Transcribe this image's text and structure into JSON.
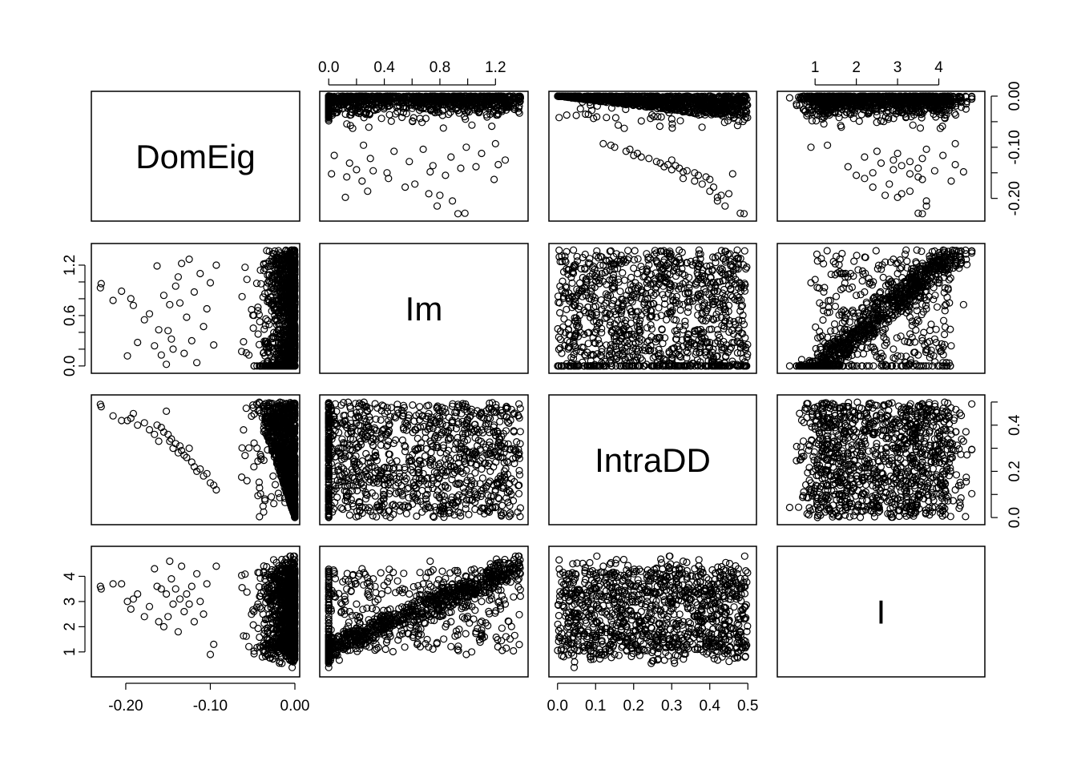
{
  "chart_data": {
    "type": "scatter",
    "plot_kind": "scatterplot matrix (pairs plot)",
    "title": "",
    "marker": "open circle",
    "colors": {
      "points": "#000000",
      "frame": "#000000",
      "background": "#ffffff"
    },
    "variables": [
      {
        "name": "DomEig",
        "range": [
          -0.235,
          0.0
        ],
        "ticks": [
          -0.2,
          -0.1,
          0.0
        ],
        "tick_labels": [
          "-0.20",
          "-0.10",
          "0.00"
        ],
        "axis_side": "bottom",
        "secondary_ticks": [
          -0.2,
          -0.15,
          -0.1,
          -0.05,
          0.0
        ],
        "secondary_tick_labels": [
          "-0.20",
          "-0.10",
          "0.00"
        ],
        "secondary_axis_side": "right"
      },
      {
        "name": "Im",
        "range": [
          -0.03,
          1.4
        ],
        "ticks": [
          0.0,
          0.2,
          0.4,
          0.6,
          0.8,
          1.0,
          1.2
        ],
        "tick_labels": [
          "0.0",
          "0.4",
          "0.8",
          "1.2"
        ],
        "axis_side": "top",
        "secondary_ticks": [
          0.0,
          0.2,
          0.4,
          0.6,
          0.8,
          1.0,
          1.2
        ],
        "secondary_tick_labels": [
          "0.0",
          "0.6",
          "1.2"
        ],
        "secondary_axis_side": "left"
      },
      {
        "name": "IntraDD",
        "range": [
          -0.01,
          0.51
        ],
        "ticks": [
          0.0,
          0.1,
          0.2,
          0.3,
          0.4,
          0.5
        ],
        "tick_labels": [
          "0.0",
          "0.1",
          "0.2",
          "0.3",
          "0.4",
          "0.5"
        ],
        "axis_side": "bottom",
        "secondary_ticks": [
          0.0,
          0.1,
          0.2,
          0.3,
          0.4,
          0.5
        ],
        "secondary_tick_labels": [
          "0.0",
          "0.2",
          "0.4"
        ],
        "secondary_axis_side": "right"
      },
      {
        "name": "I",
        "range": [
          0.2,
          5.0
        ],
        "ticks": [
          1,
          2,
          3,
          4
        ],
        "tick_labels": [
          "1",
          "2",
          "3",
          "4"
        ],
        "axis_side": "top",
        "secondary_ticks": [
          1,
          2,
          3,
          4
        ],
        "secondary_tick_labels": [
          "1",
          "2",
          "3",
          "4"
        ],
        "secondary_axis_side": "left"
      }
    ],
    "point_count_approx": 2000,
    "points": [
      [
        -0.23,
        0.93,
        0.49,
        3.6
      ],
      [
        -0.229,
        0.98,
        0.48,
        3.5
      ],
      [
        -0.215,
        0.78,
        0.44,
        3.7
      ],
      [
        -0.205,
        0.89,
        0.42,
        3.7
      ],
      [
        -0.198,
        0.12,
        0.42,
        3.0
      ],
      [
        -0.194,
        0.8,
        0.43,
        2.7
      ],
      [
        -0.191,
        0.72,
        0.45,
        3.1
      ],
      [
        -0.186,
        0.28,
        0.4,
        3.3
      ],
      [
        -0.178,
        0.55,
        0.41,
        2.4
      ],
      [
        -0.172,
        0.62,
        0.38,
        2.8
      ],
      [
        -0.166,
        0.24,
        0.36,
        4.3
      ],
      [
        -0.163,
        1.19,
        0.4,
        3.6
      ],
      [
        -0.161,
        0.43,
        0.33,
        2.2
      ],
      [
        -0.158,
        0.13,
        0.39,
        3.5
      ],
      [
        -0.155,
        0.84,
        0.37,
        2.0
      ],
      [
        -0.152,
        0.02,
        0.46,
        3.3
      ],
      [
        -0.15,
        0.42,
        0.36,
        2.4
      ],
      [
        -0.148,
        0.73,
        0.33,
        4.6
      ],
      [
        -0.146,
        0.32,
        0.34,
        3.9
      ],
      [
        -0.144,
        0.2,
        0.3,
        2.9
      ],
      [
        -0.141,
        0.95,
        0.32,
        3.5
      ],
      [
        -0.138,
        1.06,
        0.28,
        1.8
      ],
      [
        -0.136,
        0.75,
        0.31,
        3.1
      ],
      [
        -0.134,
        1.22,
        0.29,
        4.4
      ],
      [
        -0.131,
        0.15,
        0.27,
        2.6
      ],
      [
        -0.128,
        0.58,
        0.26,
        3.3
      ],
      [
        -0.125,
        1.27,
        0.3,
        2.9
      ],
      [
        -0.122,
        0.3,
        0.24,
        3.6
      ],
      [
        -0.119,
        0.88,
        0.22,
        2.2
      ],
      [
        -0.116,
        0.04,
        0.2,
        4.1
      ],
      [
        -0.112,
        1.1,
        0.21,
        3.0
      ],
      [
        -0.108,
        0.47,
        0.18,
        2.5
      ],
      [
        -0.104,
        0.68,
        0.19,
        3.7
      ],
      [
        -0.1,
        0.99,
        0.15,
        0.9
      ],
      [
        -0.096,
        0.25,
        0.14,
        1.3
      ],
      [
        -0.093,
        1.2,
        0.12,
        4.4
      ]
    ]
  }
}
